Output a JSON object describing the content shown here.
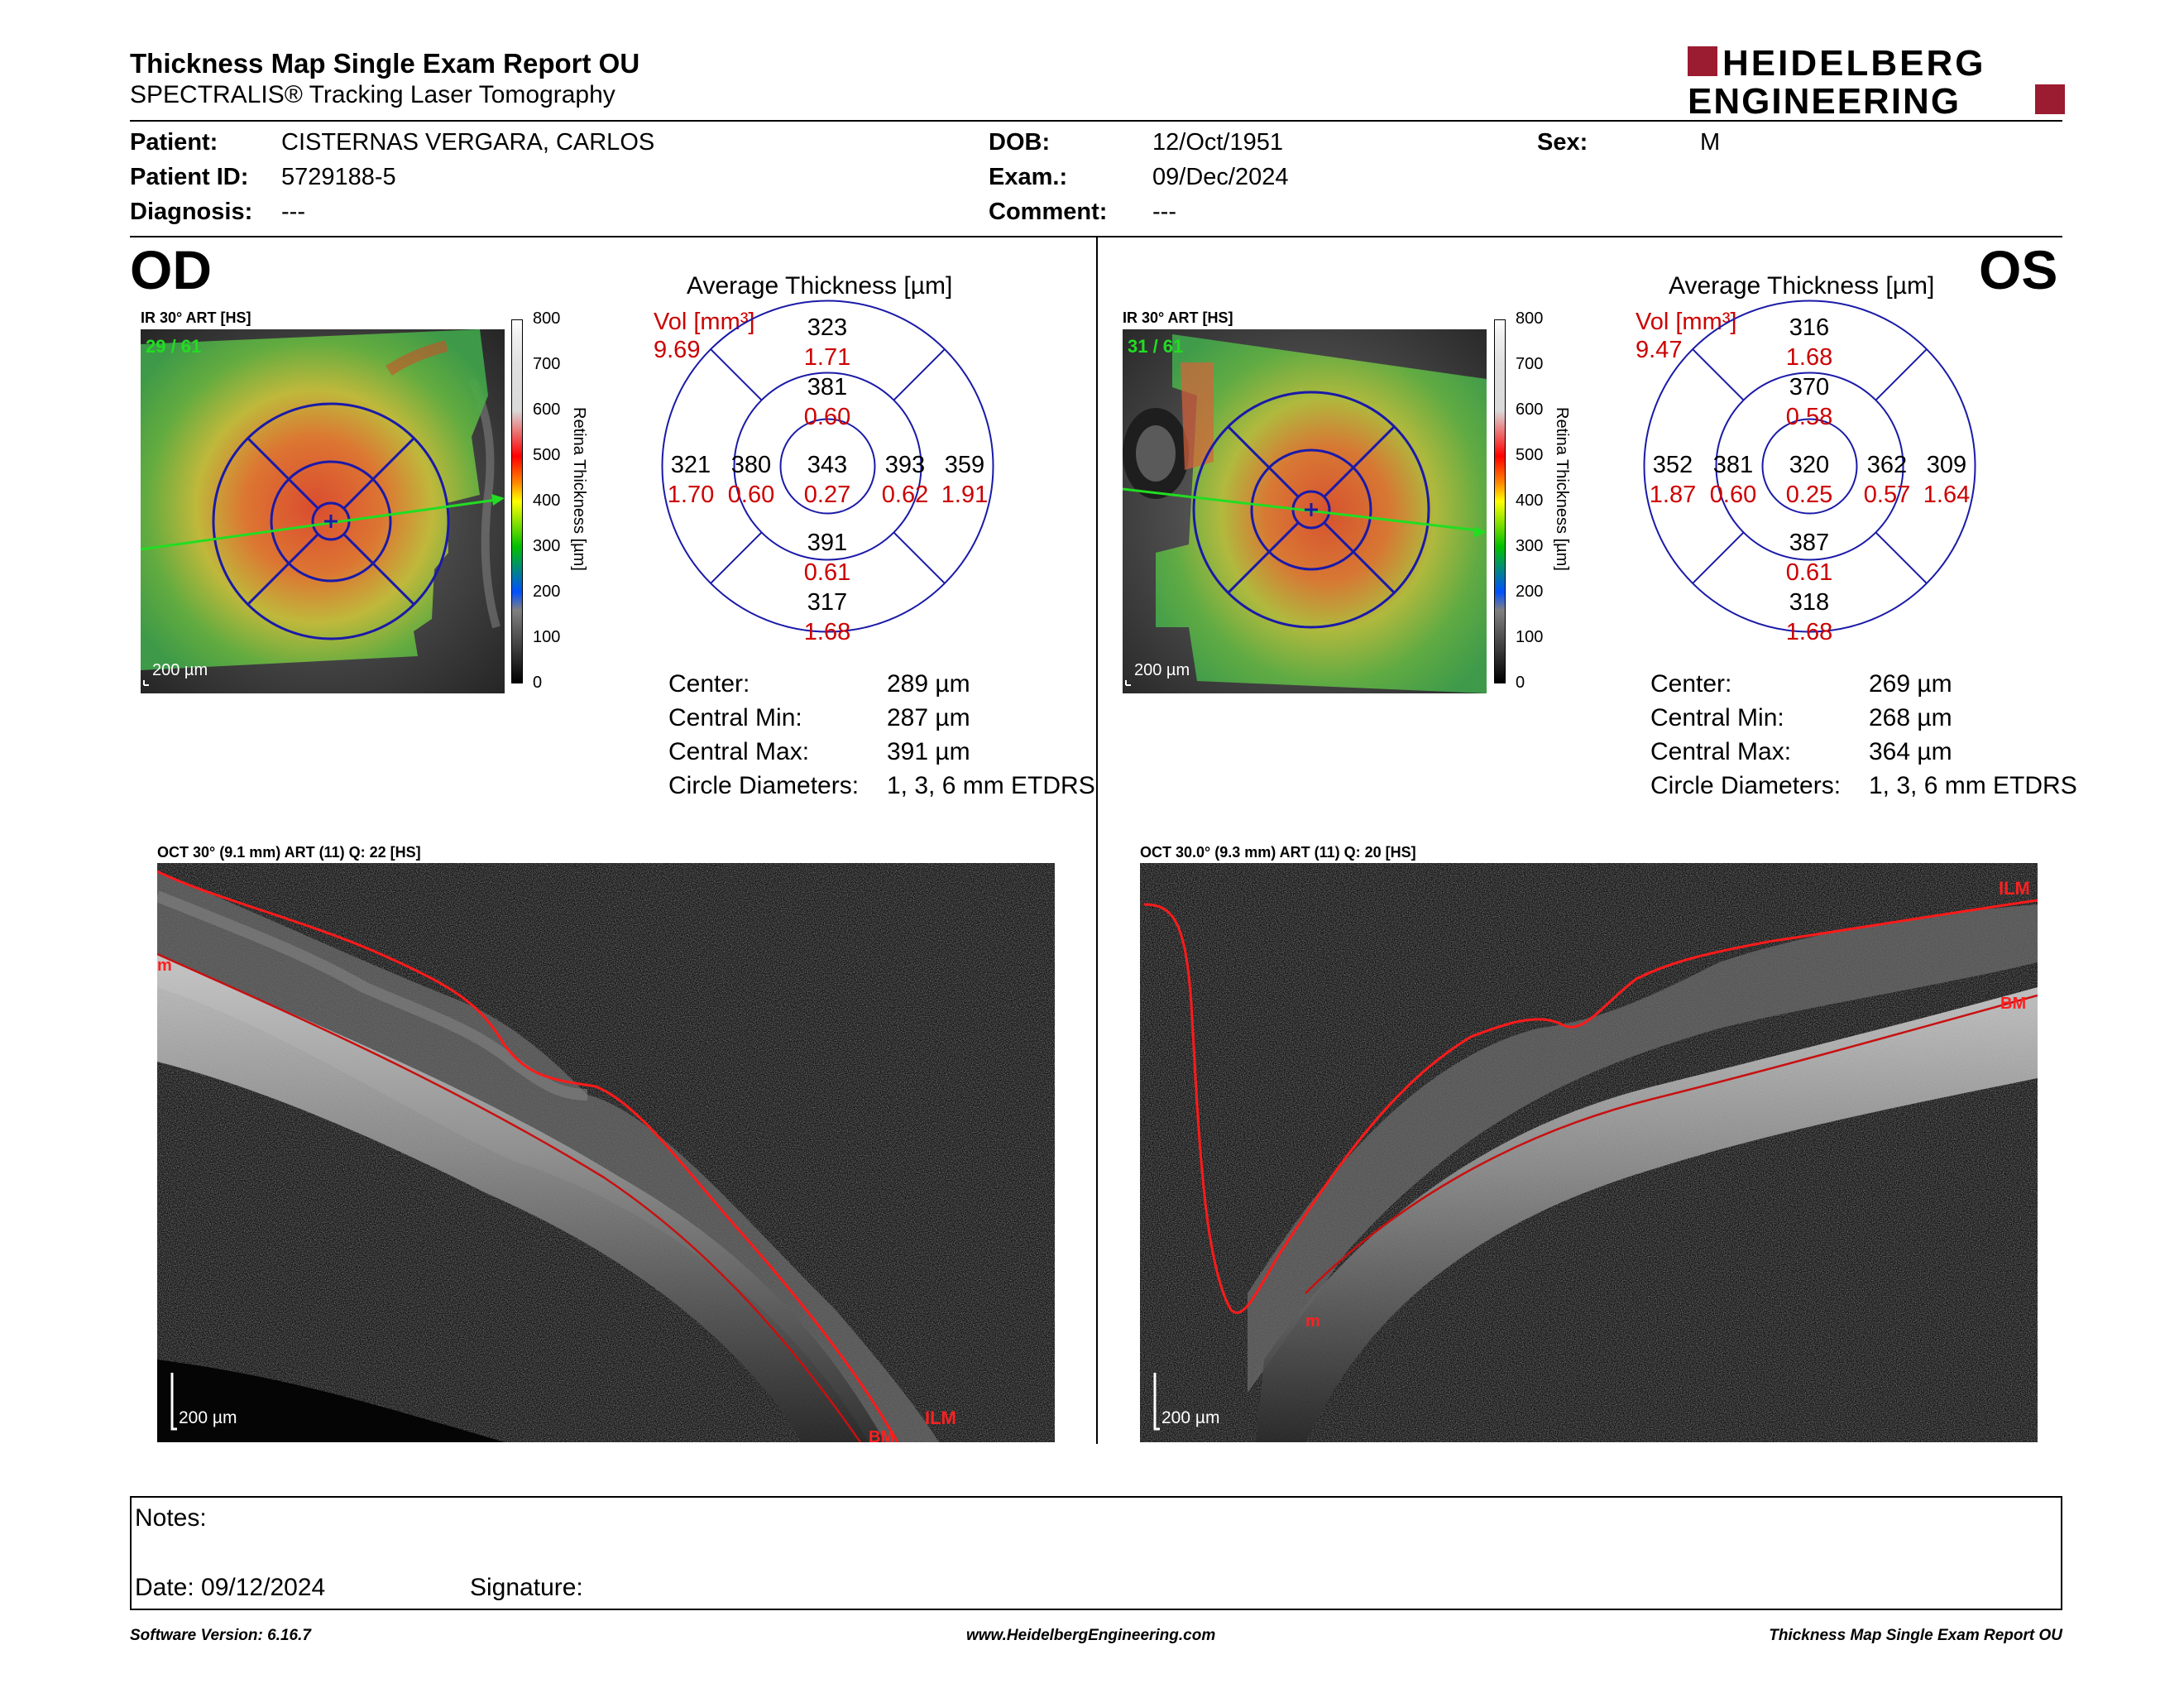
{
  "header": {
    "title": "Thickness Map Single Exam Report OU",
    "subtitle": "SPECTRALIS® Tracking Laser Tomography",
    "logo_line1": "HEIDELBERG",
    "logo_line2": "ENGINEERING"
  },
  "patient": {
    "patient_label": "Patient:",
    "patient_value": "CISTERNAS VERGARA, CARLOS",
    "patient_id_label": "Patient ID:",
    "patient_id_value": "5729188-5",
    "diagnosis_label": "Diagnosis:",
    "diagnosis_value": "---",
    "dob_label": "DOB:",
    "dob_value": "12/Oct/1951",
    "exam_label": "Exam.:",
    "exam_value": "09/Dec/2024",
    "comment_label": "Comment:",
    "comment_value": "---",
    "sex_label": "Sex:",
    "sex_value": "M"
  },
  "scale": {
    "ticks": [
      "800",
      "700",
      "600",
      "500",
      "400",
      "300",
      "200",
      "100",
      "0"
    ],
    "title": "Retina  Thickness [µm]"
  },
  "od": {
    "eye": "OD",
    "ir_caption": "IR 30° ART [HS]",
    "frame_counter": "29 / 61",
    "scalebar": "200 µm",
    "avg_title": "Average Thickness [µm]",
    "vol_label": "Vol [mm³]",
    "vol_value": "9.69",
    "sectors": {
      "outer_superior": {
        "t": "323",
        "v": "1.71"
      },
      "inner_superior": {
        "t": "381",
        "v": "0.60"
      },
      "center": {
        "t": "343",
        "v": "0.27"
      },
      "outer_left": {
        "t": "321",
        "v": "1.70"
      },
      "inner_left": {
        "t": "380",
        "v": "0.60"
      },
      "inner_right": {
        "t": "393",
        "v": "0.62"
      },
      "outer_right": {
        "t": "359",
        "v": "1.91"
      },
      "inner_inferior": {
        "t": "391",
        "v": "0.61"
      },
      "outer_inferior": {
        "t": "317",
        "v": "1.68"
      }
    },
    "stats": {
      "center_label": "Center:",
      "center_value": "289 µm",
      "cmin_label": "Central Min:",
      "cmin_value": "287 µm",
      "cmax_label": "Central Max:",
      "cmax_value": "391 µm",
      "diam_label": "Circle Diameters:",
      "diam_value": "1, 3, 6 mm ETDRS"
    },
    "oct_caption": "OCT 30° (9.1 mm) ART (11) Q: 22 [HS]",
    "oct_scalebar": "200 µm",
    "ilm_label": "ILM",
    "bm_label": "BM",
    "m_label": "m"
  },
  "os": {
    "eye": "OS",
    "ir_caption": "IR 30° ART [HS]",
    "frame_counter": "31 / 61",
    "scalebar": "200 µm",
    "avg_title": "Average Thickness [µm]",
    "vol_label": "Vol [mm³]",
    "vol_value": "9.47",
    "sectors": {
      "outer_superior": {
        "t": "316",
        "v": "1.68"
      },
      "inner_superior": {
        "t": "370",
        "v": "0.58"
      },
      "center": {
        "t": "320",
        "v": "0.25"
      },
      "outer_left": {
        "t": "352",
        "v": "1.87"
      },
      "inner_left": {
        "t": "381",
        "v": "0.60"
      },
      "inner_right": {
        "t": "362",
        "v": "0.57"
      },
      "outer_right": {
        "t": "309",
        "v": "1.64"
      },
      "inner_inferior": {
        "t": "387",
        "v": "0.61"
      },
      "outer_inferior": {
        "t": "318",
        "v": "1.68"
      }
    },
    "stats": {
      "center_label": "Center:",
      "center_value": "269 µm",
      "cmin_label": "Central Min:",
      "cmin_value": "268 µm",
      "cmax_label": "Central Max:",
      "cmax_value": "364 µm",
      "diam_label": "Circle Diameters:",
      "diam_value": "1, 3, 6 mm ETDRS"
    },
    "oct_caption": "OCT 30.0° (9.3 mm) ART (11) Q: 20 [HS]",
    "oct_scalebar": "200 µm",
    "ilm_label": "ILM",
    "bm_label": "BM",
    "m_label": "m"
  },
  "notes": {
    "notes_label": "Notes:",
    "date_label": "Date: 09/12/2024",
    "signature_label": "Signature:"
  },
  "footer": {
    "software": "Software Version: 6.16.7",
    "website": "www.HeidelbergEngineering.com",
    "report": "Thickness Map Single Exam Report OU"
  },
  "colors": {
    "brand": "#9b1b30",
    "value_red": "#cc0000",
    "grid_blue": "#1a1aa8",
    "scan_green": "#22dd22"
  }
}
